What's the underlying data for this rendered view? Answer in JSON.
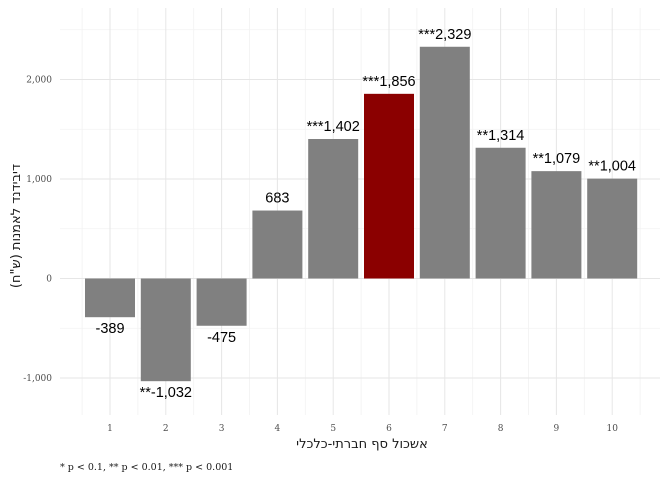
{
  "chart_data": {
    "type": "bar",
    "categories": [
      "1",
      "2",
      "3",
      "4",
      "5",
      "6",
      "7",
      "8",
      "9",
      "10"
    ],
    "values": [
      -389,
      -1032,
      -475,
      683,
      1402,
      1856,
      2329,
      1314,
      1079,
      1004
    ],
    "data_labels": [
      "-389",
      "**-1,032",
      "-475",
      "683",
      "***1,402",
      "***1,856",
      "***2,329",
      "**1,314",
      "**1,079",
      "**1,004"
    ],
    "highlight_index": 5,
    "colors": {
      "default": "#808080",
      "highlight": "#8b0000"
    },
    "xlabel": "אשכול סף חברתי-כלכלי",
    "ylabel": "דיבידנד לאמנות (ש\"ח)",
    "ylim": [
      -1300,
      2500
    ],
    "yticks": [
      -1000,
      0,
      1000,
      2000
    ],
    "ytick_labels": [
      "-1,000",
      "0",
      "1,000",
      "2,000"
    ],
    "grid": true,
    "caption": "* p < 0.1, ** p < 0.01, *** p < 0.001"
  }
}
